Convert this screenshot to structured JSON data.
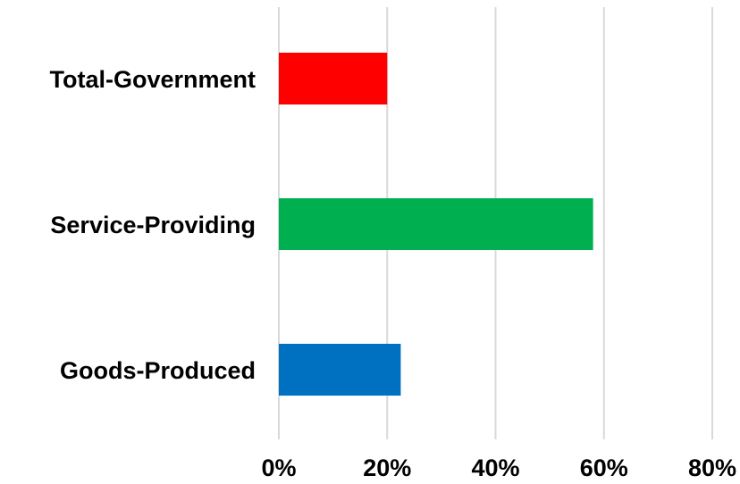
{
  "chart_data": {
    "type": "bar",
    "orientation": "horizontal",
    "categories": [
      "Total-Government",
      "Service-Providing",
      "Goods-Produced"
    ],
    "values": [
      0.2,
      0.58,
      0.225
    ],
    "colors": [
      "#ff0000",
      "#00b050",
      "#0070c0"
    ],
    "xlim": [
      0,
      0.8
    ],
    "x_ticks": [
      0,
      0.2,
      0.4,
      0.6,
      0.8
    ],
    "x_tick_labels": [
      "0%",
      "20%",
      "40%",
      "60%",
      "80%"
    ],
    "grid": true,
    "legend": "none",
    "title": "",
    "xlabel": "",
    "ylabel": ""
  }
}
